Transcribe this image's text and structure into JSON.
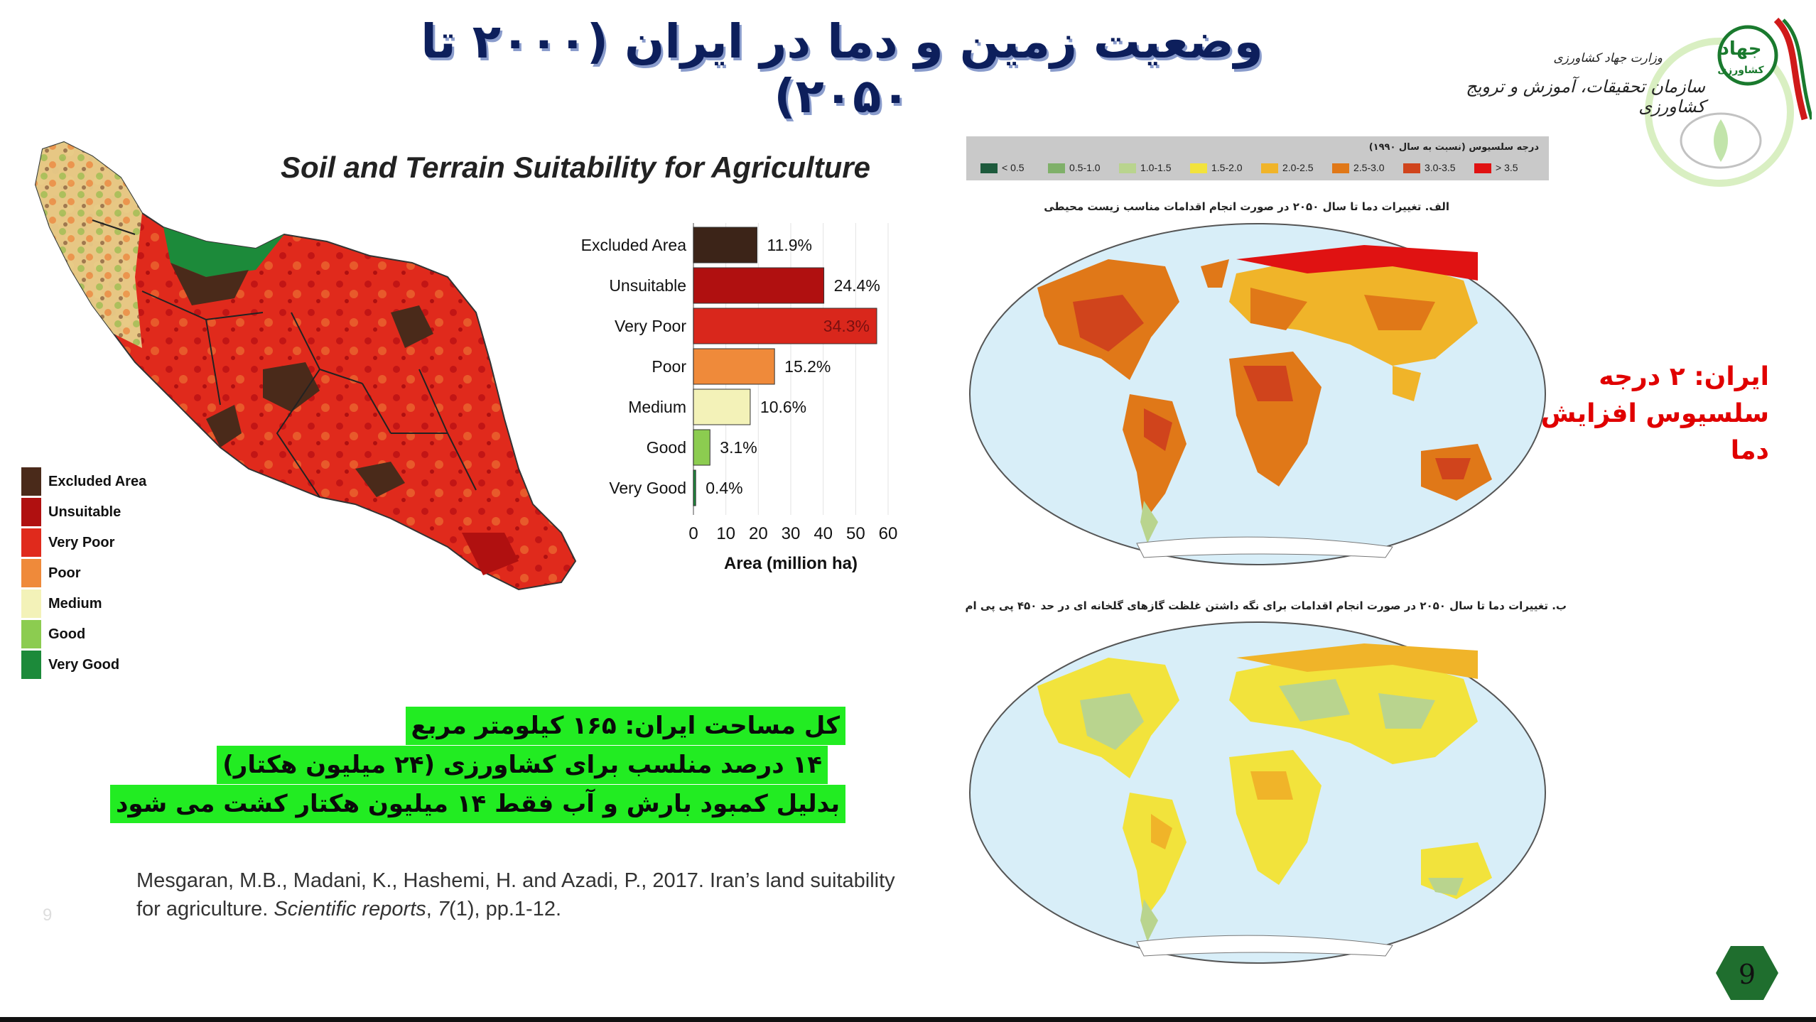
{
  "title": "وضعیت زمین و دما در ایران (۲۰۰۰ تا ۲۰۵۰)",
  "logo": {
    "ministry": "وزارت جهاد کشاورزی",
    "organization": "سازمان تحقیقات، آموزش و ترویج کشاورزی",
    "emblem_text_1": "جهاد",
    "emblem_text_2": "کشاورزی"
  },
  "soil_chart": {
    "title": "Soil and Terrain Suitability for Agriculture",
    "legend": [
      {
        "label": "Excluded Area",
        "color": "#4a2a1a"
      },
      {
        "label": "Unsuitable",
        "color": "#b01010"
      },
      {
        "label": "Very Poor",
        "color": "#e02a1c"
      },
      {
        "label": "Poor",
        "color": "#ef8a3a"
      },
      {
        "label": "Medium",
        "color": "#f3f2b8"
      },
      {
        "label": "Good",
        "color": "#8ccc50"
      },
      {
        "label": "Very Good",
        "color": "#1c8a3a"
      }
    ]
  },
  "chart_data": {
    "type": "bar",
    "orientation": "horizontal",
    "categories": [
      "Excluded Area",
      "Unsuitable",
      "Very Poor",
      "Poor",
      "Medium",
      "Good",
      "Very Good"
    ],
    "values": [
      19.6,
      40.2,
      56.5,
      25.0,
      17.5,
      5.1,
      0.7
    ],
    "data_labels": [
      "11.9%",
      "24.4%",
      "34.3%",
      "15.2%",
      "10.6%",
      "3.1%",
      "0.4%"
    ],
    "colors": [
      "#3c2418",
      "#b01010",
      "#d9271c",
      "#ef8a3a",
      "#f3f2b8",
      "#8ccc50",
      "#1c8a3a"
    ],
    "xlabel": "Area (million ha)",
    "xlim": [
      0,
      60
    ],
    "xticks": [
      "0",
      "10",
      "20",
      "30",
      "40",
      "50",
      "60"
    ],
    "grid": true
  },
  "green_box": {
    "lines": [
      "کل مساحت ایران: ۱۶۵ کیلومتر مربع",
      "۱۴ درصد منلسب برای کشاورزی (۲۴ میلیون هکتار)",
      "بدلیل کمبود بارش و آب فقط ۱۴ میلیون هکتار کشت می شود"
    ]
  },
  "citation": {
    "text_1": "Mesgaran, M.B., Madani, K., Hashemi, H. and Azadi, P., 2017. Iran’s land suitability for agriculture. ",
    "journal": "Scientific reports",
    "sep": ", ",
    "volume": "7",
    "text_2": "(1), pp.1-12.",
    "faint_page": "9"
  },
  "temperature": {
    "legend_title": "درجه سلسیوس (نسبت به سال ۱۹۹۰)",
    "legend": [
      {
        "label": "< 0.5",
        "color": "#1d5a3c"
      },
      {
        "label": "0.5-1.0",
        "color": "#7fb069"
      },
      {
        "label": "1.0-1.5",
        "color": "#b9d48e"
      },
      {
        "label": "1.5-2.0",
        "color": "#f2e33c"
      },
      {
        "label": "2.0-2.5",
        "color": "#f0b429"
      },
      {
        "label": "2.5-3.0",
        "color": "#e07818"
      },
      {
        "label": "3.0-3.5",
        "color": "#d0441c"
      },
      {
        "label": "> 3.5",
        "color": "#e01212"
      }
    ],
    "caption_a": "الف. تغییرات دما تا سال ۲۰۵۰ در صورت انجام اقدامات مناسب زیست محیطی",
    "caption_b": "ب. تغییرات دما تا سال ۲۰۵۰ در صورت انجام اقدامات برای نگه داشتن غلظت گازهای گلخانه ای در حد ۴۵۰ پی پی ام"
  },
  "iran_note": {
    "line_1": "ایران: ۲ درجه",
    "line_2": "سلسیوس افزایش دما"
  },
  "page_number": "9",
  "colors": {
    "title": "#0d1f5c",
    "highlight": "#22ec22",
    "accent_red": "#e00000",
    "ocean": "#d8eef8",
    "badge": "#1f6e2e"
  }
}
